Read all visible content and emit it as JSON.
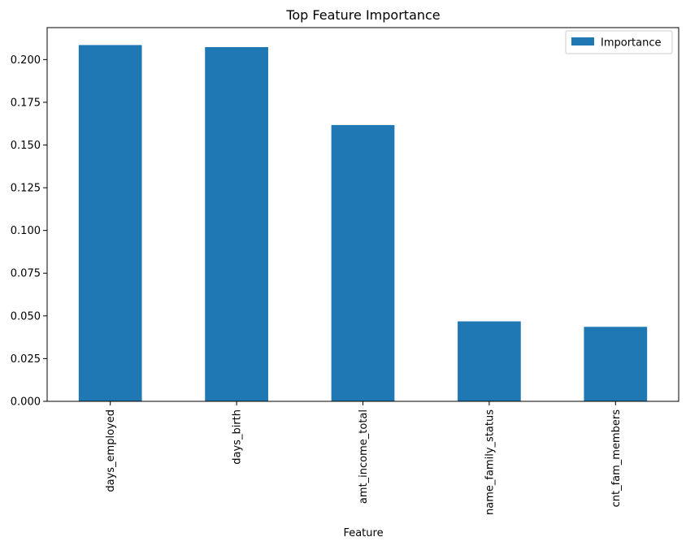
{
  "chart_data": {
    "type": "bar",
    "title": "Top Feature Importance",
    "xlabel": "Feature",
    "ylabel": "",
    "categories": [
      "days_employed",
      "days_birth",
      "amt_income_total",
      "name_family_status",
      "cnt_fam_members"
    ],
    "series": [
      {
        "name": "Importance",
        "values": [
          0.2085,
          0.2073,
          0.1617,
          0.0468,
          0.0436
        ],
        "color": "#1f77b4"
      }
    ],
    "ylim": [
      0,
      0.2187
    ],
    "yticks": [
      0.0,
      0.025,
      0.05,
      0.075,
      0.1,
      0.125,
      0.15,
      0.175,
      0.2
    ],
    "ytick_labels": [
      "0.000",
      "0.025",
      "0.050",
      "0.075",
      "0.100",
      "0.125",
      "0.150",
      "0.175",
      "0.200"
    ],
    "grid": false,
    "legend": {
      "position": "top-right",
      "entries": [
        "Importance"
      ]
    }
  }
}
